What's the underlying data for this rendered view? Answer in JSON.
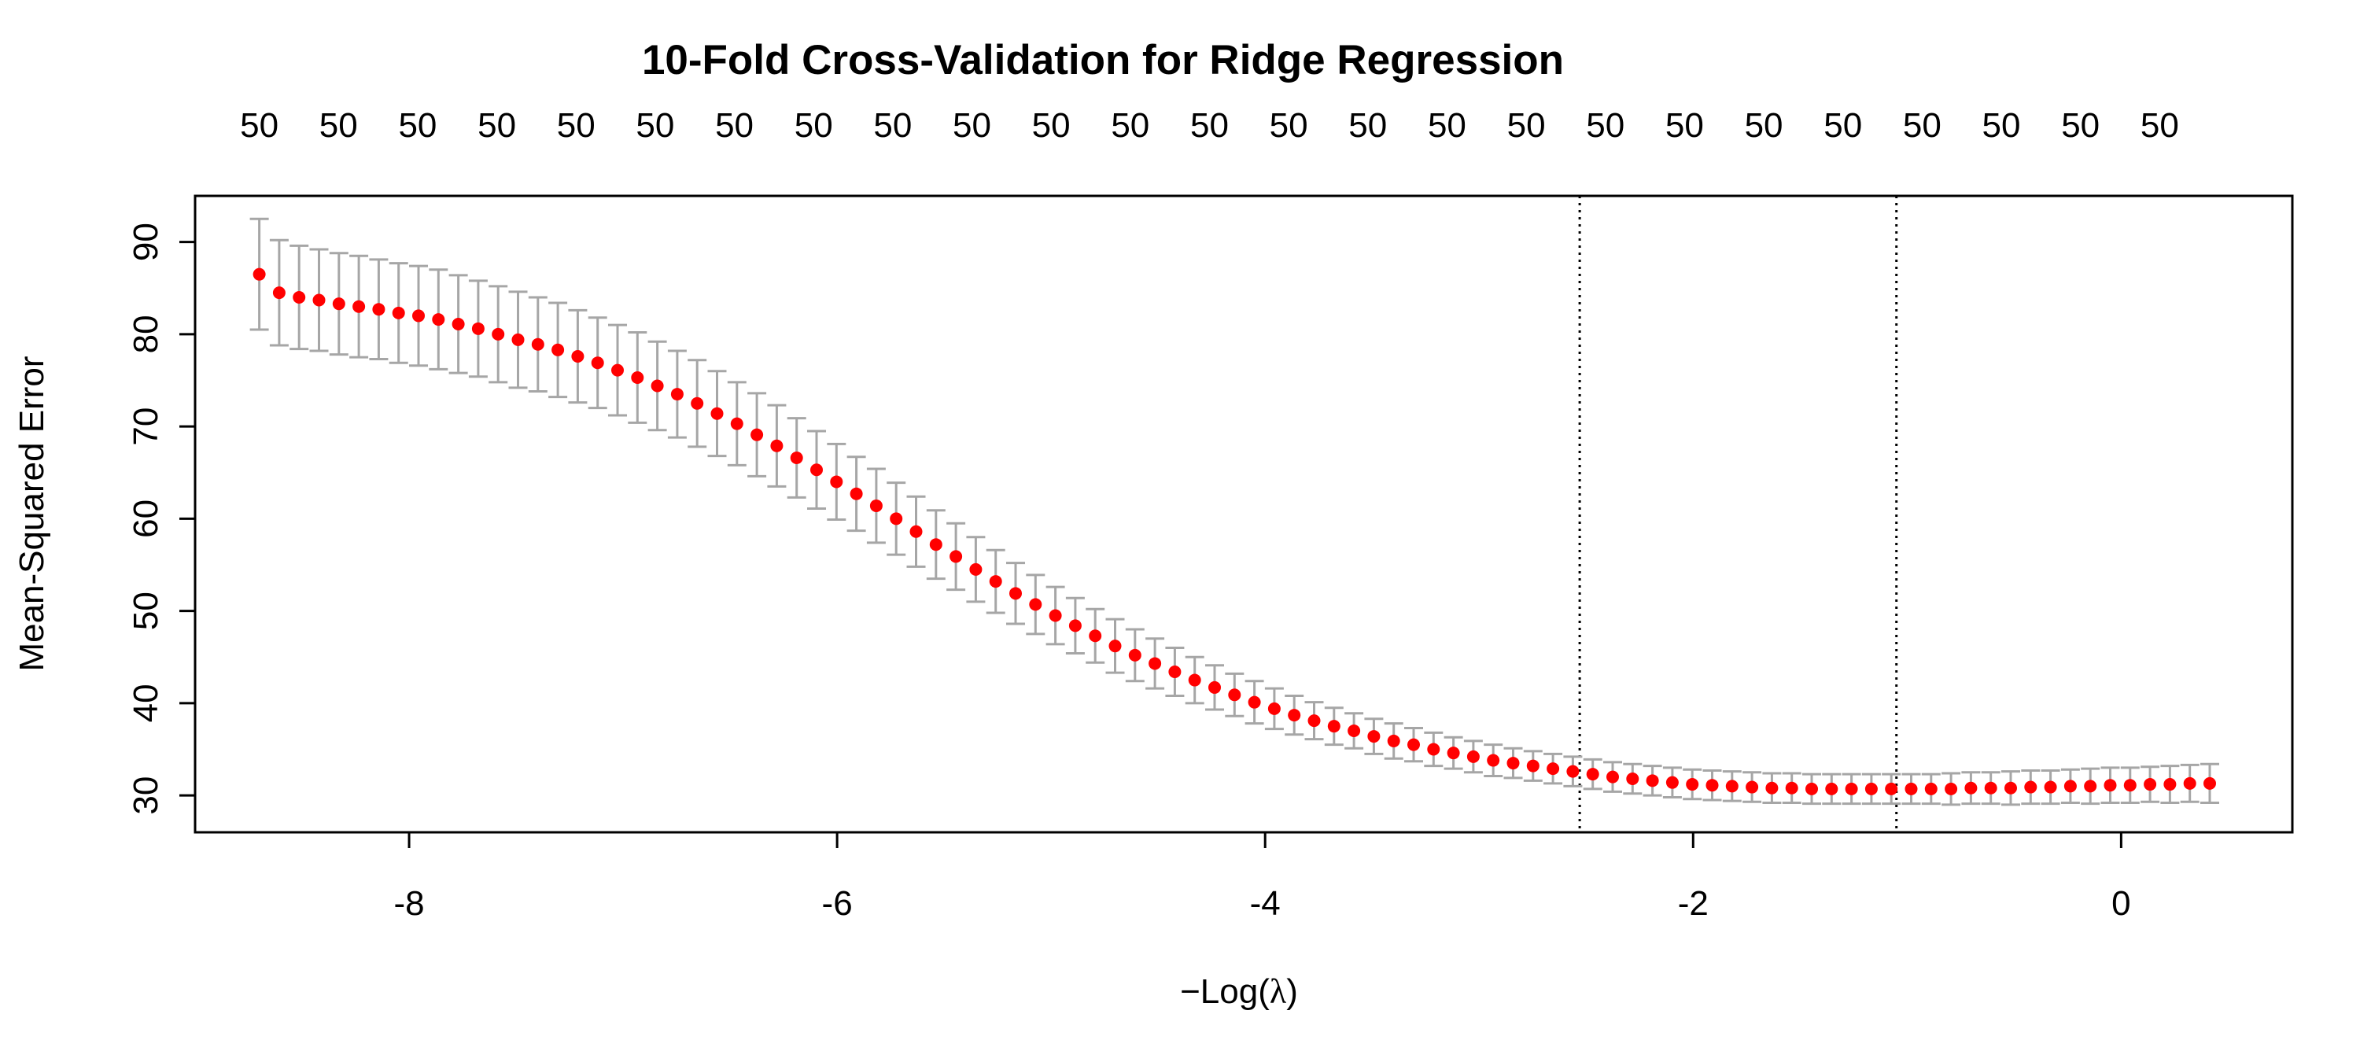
{
  "colors": {
    "point": "#ff0000",
    "error_bar": "#a6a6a6",
    "frame": "#000000",
    "vline": "#000000",
    "text": "#000000"
  },
  "chart_data": {
    "type": "scatter",
    "title": "10-Fold Cross-Validation for Ridge Regression",
    "xlabel_prefix": "−Log(",
    "xlabel_symbol": "λ",
    "xlabel_suffix": ")",
    "ylabel": "Mean-Squared Error",
    "xlim": [
      -9.0,
      0.8
    ],
    "ylim": [
      26.0,
      95.0
    ],
    "x_ticks": [
      "-8",
      "-6",
      "-4",
      "-2",
      "0"
    ],
    "y_ticks": [
      "30",
      "40",
      "50",
      "60",
      "70",
      "80",
      "90"
    ],
    "top_ticks": {
      "labels": [
        "50",
        "50",
        "50",
        "50",
        "50",
        "50",
        "50",
        "50",
        "50",
        "50",
        "50",
        "50",
        "50",
        "50",
        "50",
        "50",
        "50",
        "50",
        "50",
        "50",
        "50",
        "50",
        "50",
        "50",
        "50"
      ],
      "x": [
        -8.7,
        -8.33,
        -7.96,
        -7.59,
        -7.22,
        -6.85,
        -6.48,
        -6.11,
        -5.74,
        -5.37,
        -5.0,
        -4.63,
        -4.26,
        -3.89,
        -3.52,
        -3.15,
        -2.78,
        -2.41,
        -2.04,
        -1.67,
        -1.3,
        -0.93,
        -0.56,
        -0.19,
        0.18
      ]
    },
    "vlines": [
      -2.53,
      -1.05
    ],
    "series": [
      {
        "x": [
          -8.7,
          -8.607,
          -8.514,
          -8.421,
          -8.328,
          -8.235,
          -8.142,
          -8.049,
          -7.956,
          -7.863,
          -7.77,
          -7.677,
          -7.584,
          -7.491,
          -7.398,
          -7.305,
          -7.212,
          -7.119,
          -7.026,
          -6.933,
          -6.84,
          -6.747,
          -6.654,
          -6.561,
          -6.468,
          -6.375,
          -6.282,
          -6.189,
          -6.096,
          -6.003,
          -5.91,
          -5.817,
          -5.724,
          -5.631,
          -5.538,
          -5.445,
          -5.352,
          -5.259,
          -5.166,
          -5.073,
          -4.98,
          -4.887,
          -4.794,
          -4.701,
          -4.608,
          -4.515,
          -4.422,
          -4.329,
          -4.236,
          -4.143,
          -4.05,
          -3.957,
          -3.864,
          -3.771,
          -3.678,
          -3.585,
          -3.492,
          -3.399,
          -3.306,
          -3.213,
          -3.12,
          -3.027,
          -2.934,
          -2.841,
          -2.748,
          -2.655,
          -2.562,
          -2.469,
          -2.376,
          -2.283,
          -2.19,
          -2.097,
          -2.004,
          -1.911,
          -1.818,
          -1.725,
          -1.632,
          -1.539,
          -1.446,
          -1.353,
          -1.26,
          -1.167,
          -1.074,
          -0.981,
          -0.888,
          -0.795,
          -0.702,
          -0.609,
          -0.516,
          -0.423,
          -0.33,
          -0.237,
          -0.144,
          -0.051,
          0.042,
          0.135,
          0.228,
          0.321,
          0.414
        ],
        "y": [
          86.5,
          84.5,
          84.0,
          83.7,
          83.3,
          83.0,
          82.7,
          82.3,
          82.0,
          81.6,
          81.1,
          80.6,
          80.0,
          79.4,
          78.9,
          78.3,
          77.6,
          76.9,
          76.1,
          75.3,
          74.4,
          73.5,
          72.5,
          71.4,
          70.3,
          69.1,
          67.9,
          66.6,
          65.3,
          64.0,
          62.7,
          61.4,
          60.0,
          58.6,
          57.2,
          55.9,
          54.5,
          53.2,
          51.9,
          50.7,
          49.5,
          48.4,
          47.3,
          46.2,
          45.2,
          44.3,
          43.4,
          42.5,
          41.7,
          40.9,
          40.1,
          39.4,
          38.7,
          38.1,
          37.5,
          37.0,
          36.4,
          35.9,
          35.5,
          35.0,
          34.6,
          34.2,
          33.8,
          33.5,
          33.2,
          32.9,
          32.6,
          32.3,
          32.0,
          31.8,
          31.6,
          31.4,
          31.2,
          31.1,
          31.0,
          30.9,
          30.8,
          30.8,
          30.7,
          30.7,
          30.7,
          30.7,
          30.7,
          30.7,
          30.7,
          30.7,
          30.8,
          30.8,
          30.8,
          30.9,
          30.9,
          31.0,
          31.0,
          31.1,
          31.1,
          31.2,
          31.2,
          31.3,
          31.3
        ],
        "upper": [
          92.5,
          90.2,
          89.6,
          89.2,
          88.8,
          88.5,
          88.1,
          87.7,
          87.4,
          87.0,
          86.4,
          85.8,
          85.2,
          84.6,
          84.0,
          83.4,
          82.6,
          81.8,
          81.0,
          80.2,
          79.2,
          78.2,
          77.2,
          76.0,
          74.8,
          73.6,
          72.3,
          70.9,
          69.5,
          68.1,
          66.7,
          65.4,
          63.9,
          62.4,
          60.9,
          59.5,
          58.0,
          56.6,
          55.2,
          53.9,
          52.6,
          51.4,
          50.2,
          49.1,
          48.0,
          47.0,
          46.0,
          45.0,
          44.1,
          43.2,
          42.4,
          41.6,
          40.8,
          40.1,
          39.5,
          38.9,
          38.3,
          37.8,
          37.3,
          36.8,
          36.3,
          35.9,
          35.5,
          35.1,
          34.8,
          34.5,
          34.2,
          33.9,
          33.6,
          33.4,
          33.2,
          33.0,
          32.8,
          32.7,
          32.6,
          32.5,
          32.4,
          32.4,
          32.3,
          32.3,
          32.3,
          32.3,
          32.3,
          32.3,
          32.3,
          32.4,
          32.5,
          32.5,
          32.6,
          32.7,
          32.7,
          32.8,
          32.9,
          33.0,
          33.0,
          33.1,
          33.2,
          33.3,
          33.4
        ],
        "lower": [
          80.5,
          78.8,
          78.4,
          78.2,
          77.8,
          77.5,
          77.3,
          76.9,
          76.6,
          76.2,
          75.8,
          75.4,
          74.8,
          74.2,
          73.8,
          73.2,
          72.6,
          72.0,
          71.2,
          70.4,
          69.6,
          68.8,
          67.8,
          66.8,
          65.8,
          64.6,
          63.5,
          62.3,
          61.1,
          59.9,
          58.7,
          57.4,
          56.1,
          54.8,
          53.5,
          52.3,
          51.0,
          49.8,
          48.6,
          47.5,
          46.4,
          45.4,
          44.4,
          43.3,
          42.4,
          41.6,
          40.8,
          40.0,
          39.3,
          38.6,
          37.8,
          37.2,
          36.6,
          36.1,
          35.5,
          35.1,
          34.5,
          34.0,
          33.7,
          33.2,
          32.9,
          32.5,
          32.1,
          31.9,
          31.6,
          31.3,
          31.0,
          30.7,
          30.4,
          30.2,
          30.0,
          29.8,
          29.6,
          29.5,
          29.4,
          29.3,
          29.2,
          29.2,
          29.1,
          29.1,
          29.1,
          29.1,
          29.1,
          29.1,
          29.1,
          29.0,
          29.1,
          29.1,
          29.0,
          29.1,
          29.1,
          29.2,
          29.1,
          29.2,
          29.2,
          29.3,
          29.2,
          29.3,
          29.2
        ]
      }
    ]
  }
}
